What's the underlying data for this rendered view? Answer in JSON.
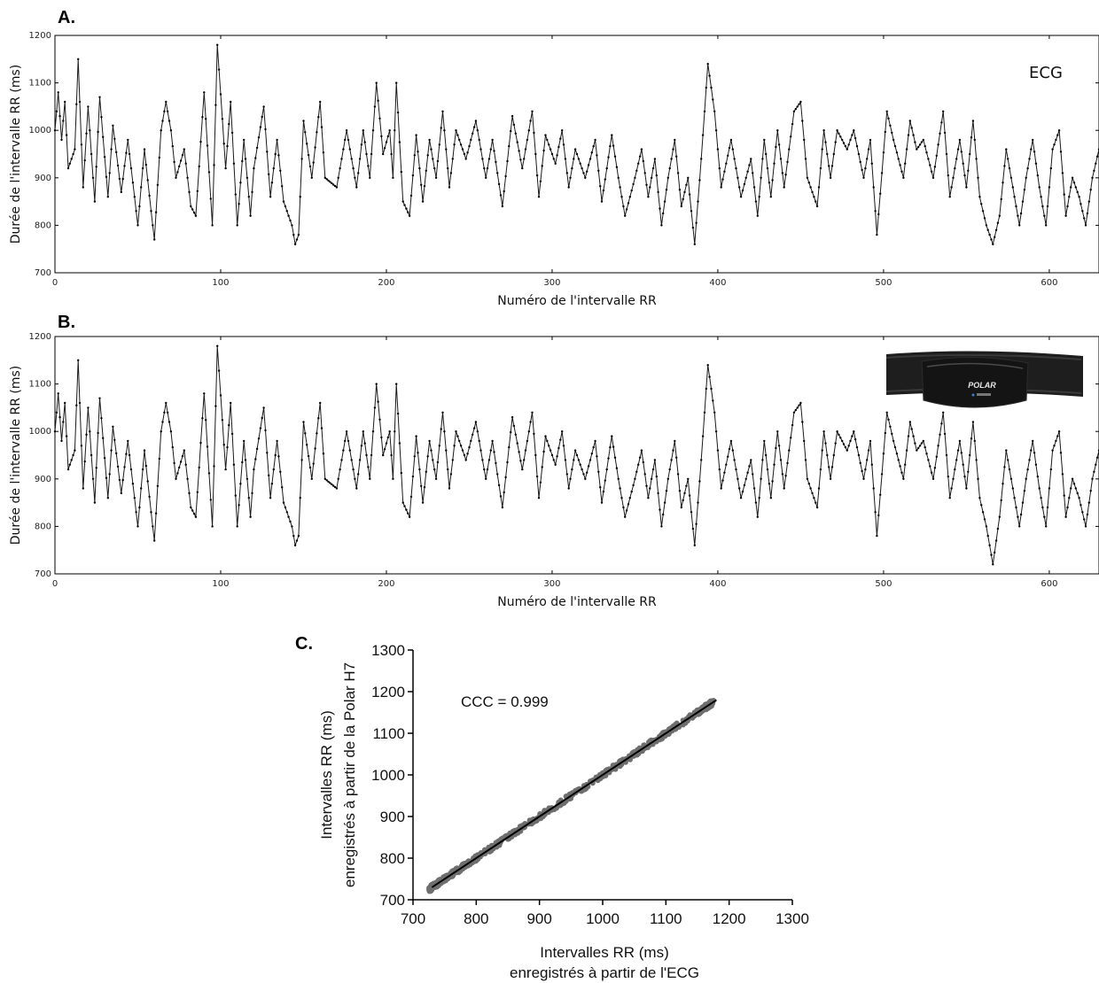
{
  "chart_data": [
    {
      "type": "line",
      "panel_label": "A.",
      "annotation": "ECG",
      "xlabel": "Numéro de l'intervalle RR",
      "ylabel": "Durée de l'intervalle RR (ms)",
      "xlim": [
        0,
        630
      ],
      "ylim": [
        700,
        1200
      ],
      "xticks": [
        "0",
        "100",
        "200",
        "300",
        "400",
        "500",
        "600"
      ],
      "yticks": [
        "700",
        "800",
        "900",
        "1000",
        "1100",
        "1200"
      ],
      "grid": false,
      "markers": true,
      "anchors": [
        [
          0,
          1000
        ],
        [
          2,
          1080
        ],
        [
          4,
          980
        ],
        [
          6,
          1060
        ],
        [
          8,
          920
        ],
        [
          12,
          960
        ],
        [
          14,
          1150
        ],
        [
          17,
          880
        ],
        [
          20,
          1050
        ],
        [
          24,
          850
        ],
        [
          27,
          1070
        ],
        [
          32,
          860
        ],
        [
          35,
          1010
        ],
        [
          40,
          870
        ],
        [
          44,
          980
        ],
        [
          50,
          800
        ],
        [
          54,
          960
        ],
        [
          58,
          830
        ],
        [
          60,
          770
        ],
        [
          64,
          1000
        ],
        [
          67,
          1060
        ],
        [
          70,
          1000
        ],
        [
          73,
          900
        ],
        [
          78,
          960
        ],
        [
          82,
          840
        ],
        [
          85,
          820
        ],
        [
          90,
          1080
        ],
        [
          95,
          800
        ],
        [
          98,
          1180
        ],
        [
          103,
          920
        ],
        [
          106,
          1060
        ],
        [
          110,
          800
        ],
        [
          114,
          980
        ],
        [
          118,
          820
        ],
        [
          120,
          920
        ],
        [
          126,
          1050
        ],
        [
          130,
          860
        ],
        [
          134,
          980
        ],
        [
          138,
          850
        ],
        [
          143,
          800
        ],
        [
          145,
          760
        ],
        [
          147,
          780
        ],
        [
          150,
          1020
        ],
        [
          155,
          900
        ],
        [
          160,
          1060
        ],
        [
          163,
          900
        ],
        [
          170,
          880
        ],
        [
          176,
          1000
        ],
        [
          182,
          880
        ],
        [
          186,
          1000
        ],
        [
          190,
          900
        ],
        [
          194,
          1100
        ],
        [
          198,
          950
        ],
        [
          202,
          1000
        ],
        [
          204,
          900
        ],
        [
          206,
          1100
        ],
        [
          210,
          850
        ],
        [
          214,
          820
        ],
        [
          218,
          990
        ],
        [
          222,
          850
        ],
        [
          226,
          980
        ],
        [
          230,
          900
        ],
        [
          234,
          1040
        ],
        [
          238,
          880
        ],
        [
          242,
          1000
        ],
        [
          248,
          940
        ],
        [
          254,
          1020
        ],
        [
          260,
          900
        ],
        [
          264,
          980
        ],
        [
          270,
          840
        ],
        [
          276,
          1030
        ],
        [
          282,
          920
        ],
        [
          288,
          1040
        ],
        [
          292,
          860
        ],
        [
          296,
          990
        ],
        [
          302,
          930
        ],
        [
          306,
          1000
        ],
        [
          310,
          880
        ],
        [
          314,
          960
        ],
        [
          320,
          900
        ],
        [
          326,
          980
        ],
        [
          330,
          850
        ],
        [
          336,
          990
        ],
        [
          340,
          900
        ],
        [
          344,
          820
        ],
        [
          350,
          900
        ],
        [
          354,
          960
        ],
        [
          358,
          860
        ],
        [
          362,
          940
        ],
        [
          366,
          800
        ],
        [
          370,
          900
        ],
        [
          374,
          980
        ],
        [
          378,
          840
        ],
        [
          382,
          900
        ],
        [
          386,
          760
        ],
        [
          390,
          940
        ],
        [
          394,
          1140
        ],
        [
          398,
          1040
        ],
        [
          402,
          880
        ],
        [
          408,
          980
        ],
        [
          414,
          860
        ],
        [
          420,
          940
        ],
        [
          424,
          820
        ],
        [
          428,
          980
        ],
        [
          432,
          860
        ],
        [
          436,
          1000
        ],
        [
          440,
          880
        ],
        [
          446,
          1040
        ],
        [
          450,
          1060
        ],
        [
          454,
          900
        ],
        [
          460,
          840
        ],
        [
          464,
          1000
        ],
        [
          468,
          900
        ],
        [
          472,
          1000
        ],
        [
          478,
          960
        ],
        [
          482,
          1000
        ],
        [
          488,
          900
        ],
        [
          492,
          980
        ],
        [
          496,
          780
        ],
        [
          502,
          1040
        ],
        [
          506,
          980
        ],
        [
          512,
          900
        ],
        [
          516,
          1020
        ],
        [
          520,
          960
        ],
        [
          524,
          980
        ],
        [
          530,
          900
        ],
        [
          536,
          1040
        ],
        [
          540,
          860
        ],
        [
          546,
          980
        ],
        [
          550,
          880
        ],
        [
          554,
          1020
        ],
        [
          558,
          860
        ],
        [
          562,
          800
        ],
        [
          566,
          760
        ],
        [
          570,
          820
        ],
        [
          574,
          960
        ],
        [
          578,
          880
        ],
        [
          582,
          800
        ],
        [
          586,
          900
        ],
        [
          590,
          980
        ],
        [
          594,
          880
        ],
        [
          598,
          800
        ],
        [
          602,
          960
        ],
        [
          606,
          1000
        ],
        [
          610,
          820
        ],
        [
          614,
          900
        ],
        [
          618,
          860
        ],
        [
          622,
          800
        ],
        [
          626,
          900
        ],
        [
          630,
          960
        ]
      ]
    },
    {
      "type": "line",
      "panel_label": "B.",
      "xlabel": "Numéro de l'intervalle RR",
      "ylabel": "Durée de l'intervalle RR (ms)",
      "xlim": [
        0,
        630
      ],
      "ylim": [
        700,
        1200
      ],
      "xticks": [
        "0",
        "100",
        "200",
        "300",
        "400",
        "500",
        "600"
      ],
      "yticks": [
        "700",
        "800",
        "900",
        "1000",
        "1100",
        "1200"
      ],
      "grid": false,
      "markers": true,
      "inset_image": "polar-h7-chest-strap",
      "inset_logo_text": "POLAR",
      "anchors": [
        [
          0,
          1000
        ],
        [
          2,
          1080
        ],
        [
          4,
          980
        ],
        [
          6,
          1060
        ],
        [
          8,
          920
        ],
        [
          12,
          960
        ],
        [
          14,
          1150
        ],
        [
          17,
          880
        ],
        [
          20,
          1050
        ],
        [
          24,
          850
        ],
        [
          27,
          1070
        ],
        [
          32,
          860
        ],
        [
          35,
          1010
        ],
        [
          40,
          870
        ],
        [
          44,
          980
        ],
        [
          50,
          800
        ],
        [
          54,
          960
        ],
        [
          58,
          830
        ],
        [
          60,
          770
        ],
        [
          64,
          1000
        ],
        [
          67,
          1060
        ],
        [
          70,
          1000
        ],
        [
          73,
          900
        ],
        [
          78,
          960
        ],
        [
          82,
          840
        ],
        [
          85,
          820
        ],
        [
          90,
          1080
        ],
        [
          95,
          800
        ],
        [
          98,
          1180
        ],
        [
          103,
          920
        ],
        [
          106,
          1060
        ],
        [
          110,
          800
        ],
        [
          114,
          980
        ],
        [
          118,
          820
        ],
        [
          120,
          920
        ],
        [
          126,
          1050
        ],
        [
          130,
          860
        ],
        [
          134,
          980
        ],
        [
          138,
          850
        ],
        [
          143,
          800
        ],
        [
          145,
          760
        ],
        [
          147,
          780
        ],
        [
          150,
          1020
        ],
        [
          155,
          900
        ],
        [
          160,
          1060
        ],
        [
          163,
          900
        ],
        [
          170,
          880
        ],
        [
          176,
          1000
        ],
        [
          182,
          880
        ],
        [
          186,
          1000
        ],
        [
          190,
          900
        ],
        [
          194,
          1100
        ],
        [
          198,
          950
        ],
        [
          202,
          1000
        ],
        [
          204,
          900
        ],
        [
          206,
          1100
        ],
        [
          210,
          850
        ],
        [
          214,
          820
        ],
        [
          218,
          990
        ],
        [
          222,
          850
        ],
        [
          226,
          980
        ],
        [
          230,
          900
        ],
        [
          234,
          1040
        ],
        [
          238,
          880
        ],
        [
          242,
          1000
        ],
        [
          248,
          940
        ],
        [
          254,
          1020
        ],
        [
          260,
          900
        ],
        [
          264,
          980
        ],
        [
          270,
          840
        ],
        [
          276,
          1030
        ],
        [
          282,
          920
        ],
        [
          288,
          1040
        ],
        [
          292,
          860
        ],
        [
          296,
          990
        ],
        [
          302,
          930
        ],
        [
          306,
          1000
        ],
        [
          310,
          880
        ],
        [
          314,
          960
        ],
        [
          320,
          900
        ],
        [
          326,
          980
        ],
        [
          330,
          850
        ],
        [
          336,
          990
        ],
        [
          340,
          900
        ],
        [
          344,
          820
        ],
        [
          350,
          900
        ],
        [
          354,
          960
        ],
        [
          358,
          860
        ],
        [
          362,
          940
        ],
        [
          366,
          800
        ],
        [
          370,
          900
        ],
        [
          374,
          980
        ],
        [
          378,
          840
        ],
        [
          382,
          900
        ],
        [
          386,
          760
        ],
        [
          390,
          940
        ],
        [
          394,
          1140
        ],
        [
          398,
          1040
        ],
        [
          402,
          880
        ],
        [
          408,
          980
        ],
        [
          414,
          860
        ],
        [
          420,
          940
        ],
        [
          424,
          820
        ],
        [
          428,
          980
        ],
        [
          432,
          860
        ],
        [
          436,
          1000
        ],
        [
          440,
          880
        ],
        [
          446,
          1040
        ],
        [
          450,
          1060
        ],
        [
          454,
          900
        ],
        [
          460,
          840
        ],
        [
          464,
          1000
        ],
        [
          468,
          900
        ],
        [
          472,
          1000
        ],
        [
          478,
          960
        ],
        [
          482,
          1000
        ],
        [
          488,
          900
        ],
        [
          492,
          980
        ],
        [
          496,
          780
        ],
        [
          502,
          1040
        ],
        [
          506,
          980
        ],
        [
          512,
          900
        ],
        [
          516,
          1020
        ],
        [
          520,
          960
        ],
        [
          524,
          980
        ],
        [
          530,
          900
        ],
        [
          536,
          1040
        ],
        [
          540,
          860
        ],
        [
          546,
          980
        ],
        [
          550,
          880
        ],
        [
          554,
          1020
        ],
        [
          558,
          860
        ],
        [
          562,
          800
        ],
        [
          566,
          720
        ],
        [
          570,
          820
        ],
        [
          574,
          960
        ],
        [
          578,
          880
        ],
        [
          582,
          800
        ],
        [
          586,
          900
        ],
        [
          590,
          980
        ],
        [
          594,
          880
        ],
        [
          598,
          800
        ],
        [
          602,
          960
        ],
        [
          606,
          1000
        ],
        [
          610,
          820
        ],
        [
          614,
          900
        ],
        [
          618,
          860
        ],
        [
          622,
          800
        ],
        [
          626,
          900
        ],
        [
          630,
          960
        ]
      ]
    },
    {
      "type": "scatter",
      "panel_label": "C.",
      "annotation": "CCC = 0.999",
      "xlabel_line1": "Intervalles RR (ms)",
      "xlabel_line2": "enregistrés à partir de l'ECG",
      "ylabel_line1": "Intervalles RR (ms)",
      "ylabel_line2": "enregistrés à partir de la  Polar H7",
      "xlim": [
        700,
        1300
      ],
      "ylim": [
        700,
        1300
      ],
      "xticks": [
        "700",
        "800",
        "900",
        "1000",
        "1100",
        "1200",
        "1300"
      ],
      "yticks": [
        "700",
        "800",
        "900",
        "1000",
        "1100",
        "1200",
        "1300"
      ],
      "fit_line": [
        [
          730,
          730
        ],
        [
          1180,
          1180
        ]
      ],
      "points_range": [
        725,
        1180
      ],
      "point_color": "#6e6e6e",
      "line_color": "#000000"
    }
  ]
}
